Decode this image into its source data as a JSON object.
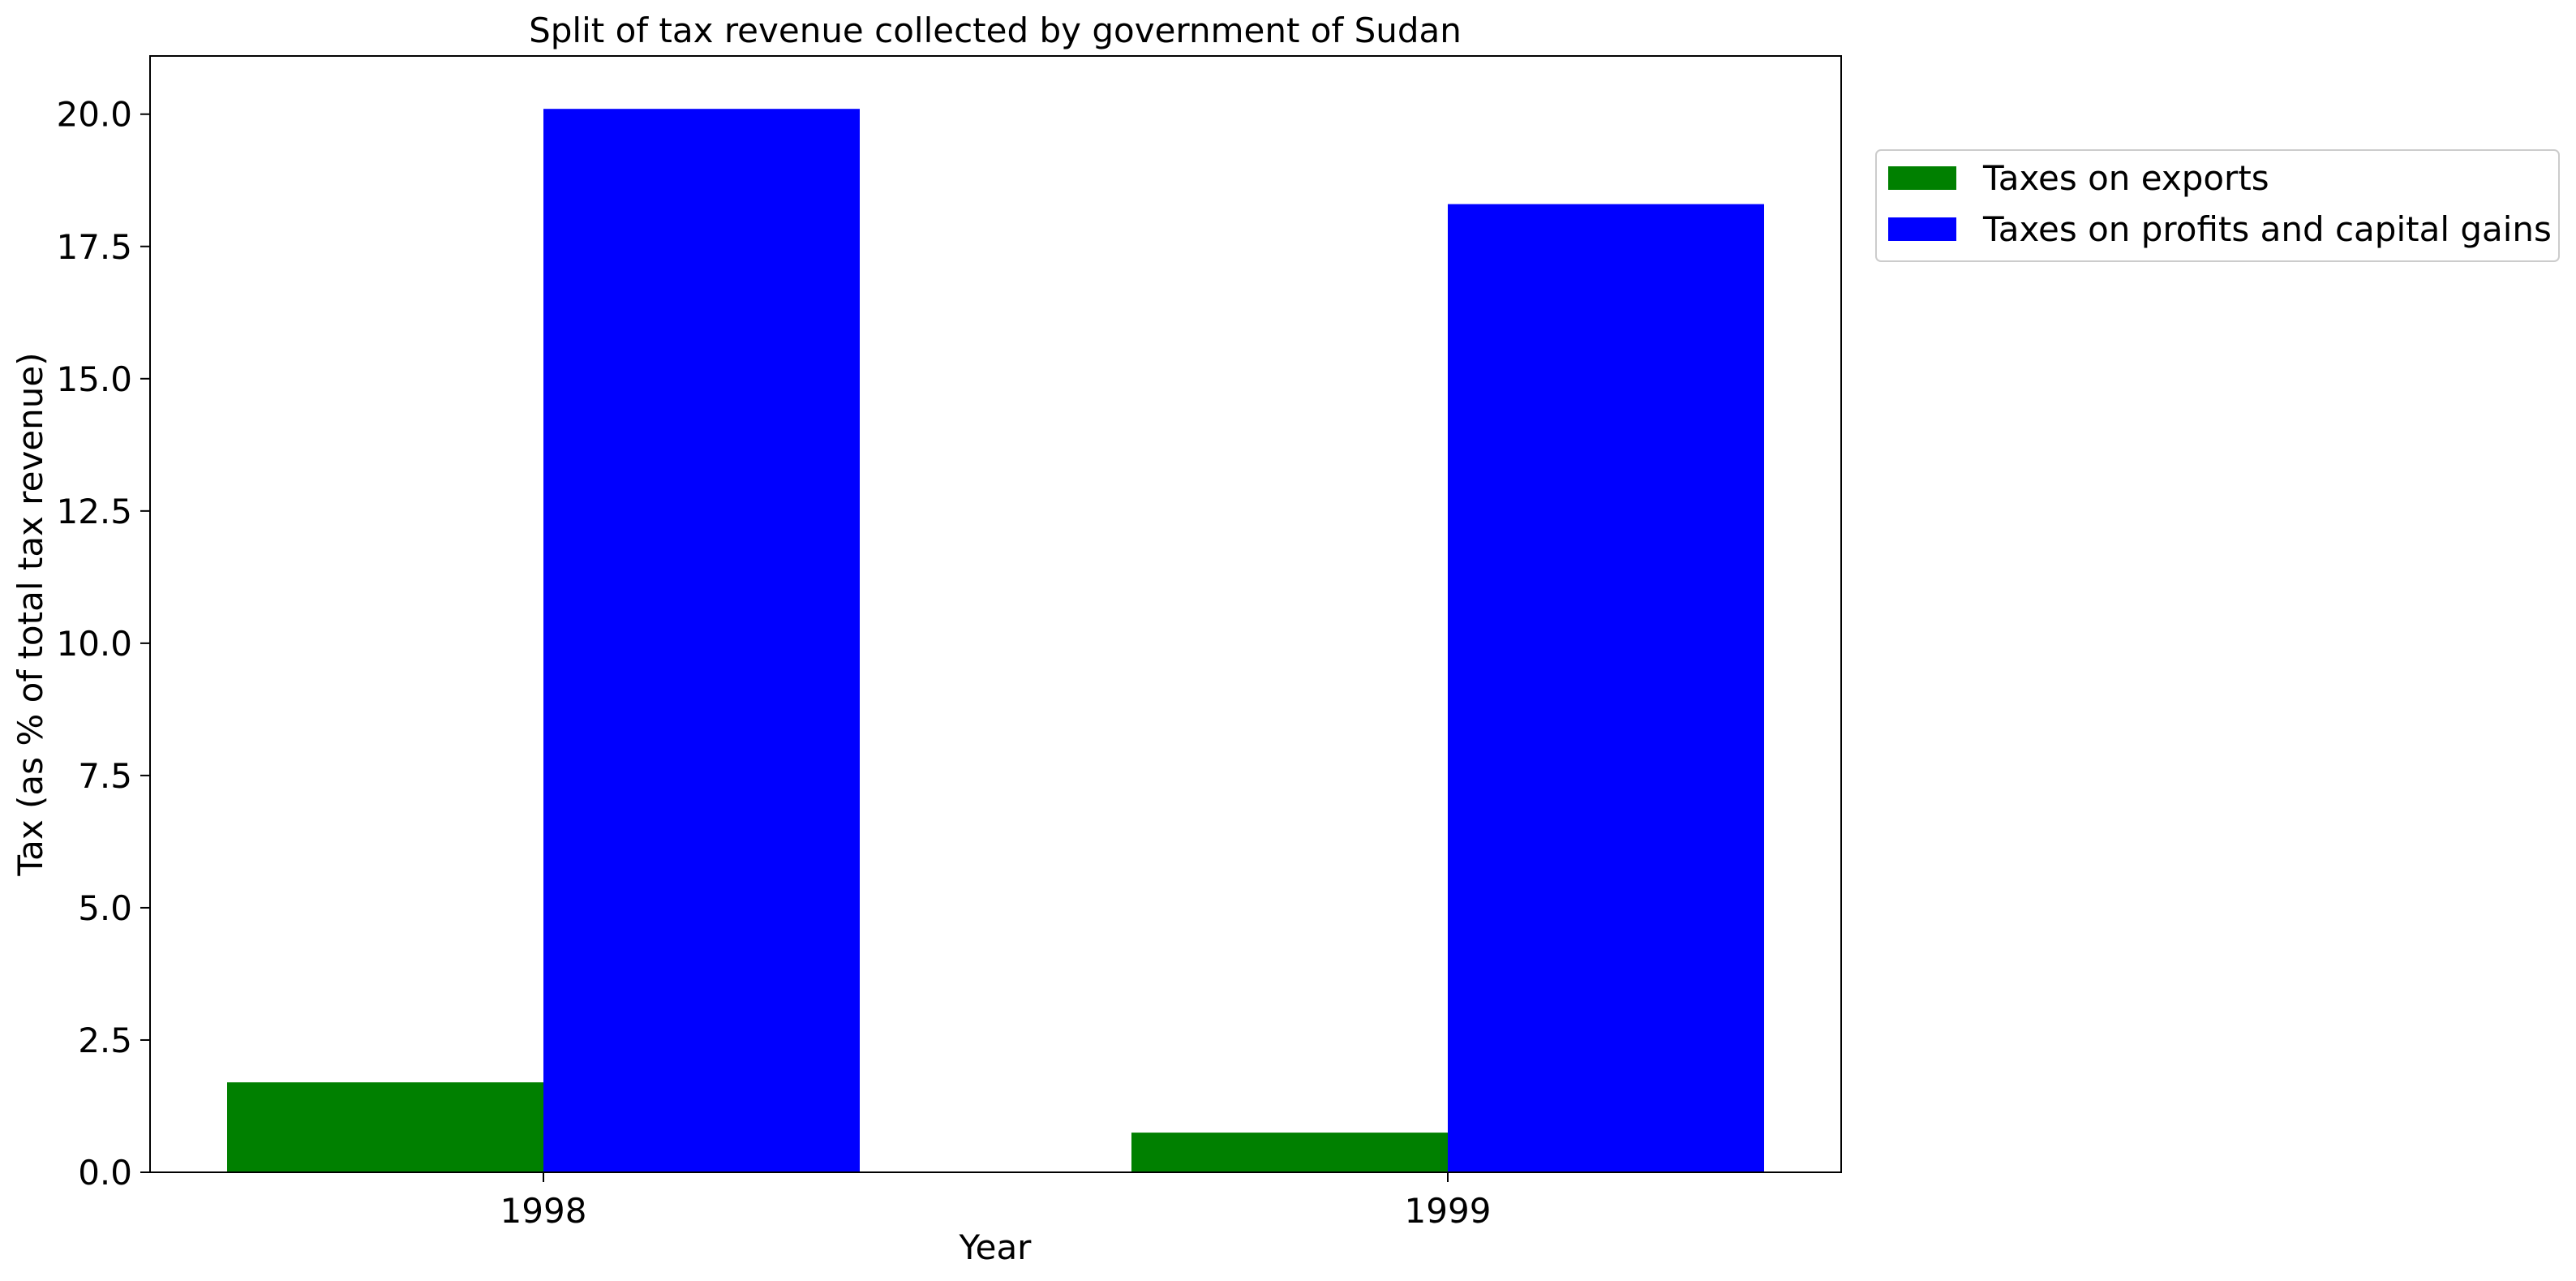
{
  "chart_data": {
    "type": "bar",
    "title": "Split of tax revenue collected by government of Sudan",
    "xlabel": "Year",
    "ylabel": "Tax (as % of total tax revenue)",
    "categories": [
      "1998",
      "1999"
    ],
    "series": [
      {
        "name": "Taxes on exports",
        "color": "#008000",
        "values": [
          1.7,
          0.75
        ]
      },
      {
        "name": "Taxes on profits and capital gains",
        "color": "#0000ff",
        "values": [
          20.1,
          18.3
        ]
      }
    ],
    "ylim": [
      0,
      21.1
    ],
    "yticks": [
      "0.0",
      "2.5",
      "5.0",
      "7.5",
      "10.0",
      "12.5",
      "15.0",
      "17.5",
      "20.0"
    ],
    "grid": false,
    "legend_position": "outside-top-right"
  }
}
